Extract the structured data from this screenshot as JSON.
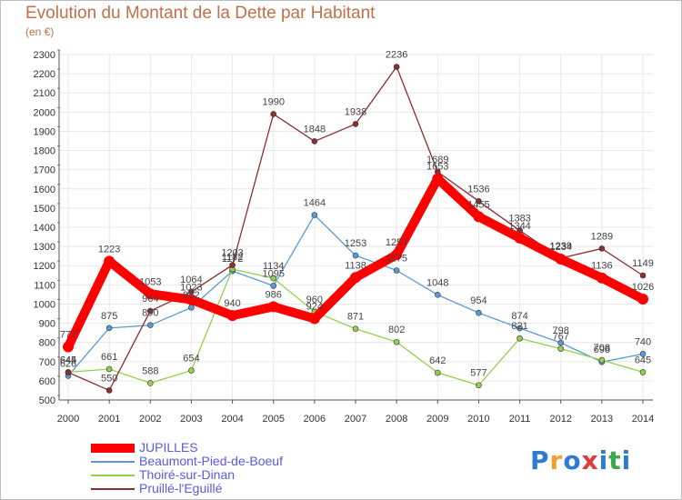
{
  "header": {
    "title": "Evolution du Montant de la Dette par Habitant",
    "unit": "(en €)"
  },
  "colors": {
    "title": "#c0704a",
    "axis": "#555555",
    "grid": "#e8e8e8",
    "tick_marks": "#c0704a"
  },
  "chart_data": {
    "type": "line",
    "title": "Evolution du Montant de la Dette par Habitant",
    "subtitle": "(en €)",
    "xlabel": "",
    "ylabel": "",
    "x": [
      "2000",
      "2001",
      "2002",
      "2003",
      "2004",
      "2005",
      "2006",
      "2007",
      "2008",
      "2009",
      "2010",
      "2011",
      "2012",
      "2013",
      "2014"
    ],
    "ylim": [
      500,
      2300
    ],
    "yticks": [
      500,
      600,
      700,
      800,
      900,
      1000,
      1100,
      1200,
      1300,
      1400,
      1500,
      1600,
      1700,
      1800,
      1900,
      2000,
      2100,
      2200,
      2300
    ],
    "grid": true,
    "legend_position": "bottom-left",
    "series": [
      {
        "name": "JUPILLES",
        "color": "#ff0000",
        "text_color": "#5a5ae6",
        "width": 10,
        "values": [
          777,
          1223,
          1053,
          1023,
          940,
          986,
          924,
          1138,
          1257,
          1653,
          1455,
          1344,
          1234,
          1136,
          1026
        ],
        "labels": [
          "777",
          "1223",
          "1053",
          "1023",
          "940",
          "986",
          "924",
          "1138",
          "1257",
          "1653",
          "1455",
          "1344",
          "1234",
          "1136",
          "1026"
        ]
      },
      {
        "name": "Beaumont-Pied-de-Boeuf",
        "color": "#5b9bd5",
        "text_color": "#5a5ae6",
        "width": 1.3,
        "values": [
          626,
          875,
          890,
          982,
          1172,
          1095,
          1464,
          1253,
          1175,
          1048,
          954,
          874,
          798,
          698,
          740
        ],
        "labels": [
          "626",
          "875",
          "890",
          "982",
          "1172",
          "1095",
          "1464",
          "1253",
          "1175",
          "1048",
          "954",
          "874",
          "798",
          "698",
          "740"
        ]
      },
      {
        "name": "Thoiré-sur-Dinan",
        "color": "#92d050",
        "text_color": "#5a5ae6",
        "width": 1.3,
        "values": [
          645,
          661,
          588,
          654,
          1182,
          1134,
          960,
          871,
          802,
          642,
          577,
          821,
          767,
          708,
          645
        ],
        "labels": [
          "645",
          "661",
          "588",
          "654",
          "1182",
          "1134",
          "960",
          "871",
          "802",
          "642",
          "577",
          "821",
          "767",
          "708",
          "645"
        ]
      },
      {
        "name": "Pruillé-l'Eguillé",
        "color": "#8b2e2e",
        "text_color": "#5a5ae6",
        "width": 1.3,
        "values": [
          644,
          550,
          964,
          1064,
          1203,
          1990,
          1848,
          1938,
          2236,
          1689,
          1536,
          1383,
          1239,
          1289,
          1149
        ],
        "labels": [
          "644",
          "550",
          "964",
          "1064",
          "1203",
          "1990",
          "1848",
          "1938",
          "2236",
          "1689",
          "1536",
          "1383",
          "1239",
          "1289",
          "1149"
        ]
      }
    ]
  },
  "logo": {
    "letters": [
      "P",
      "r",
      "o",
      "x",
      "i",
      "t",
      "i"
    ],
    "colors": [
      "#2e7bd6",
      "#f0a030",
      "#2e7bd6",
      "#e03a3a",
      "#2e7bd6",
      "#3aa84a",
      "#2e7bd6"
    ]
  }
}
